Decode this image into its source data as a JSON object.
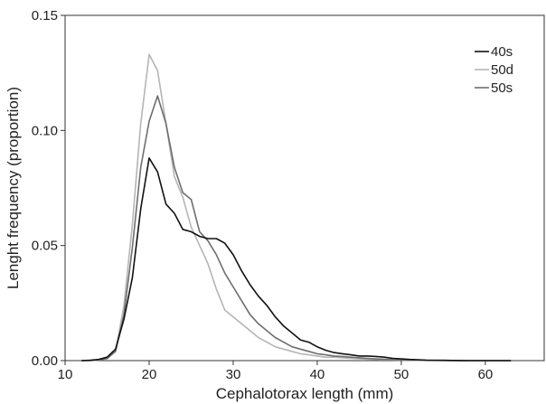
{
  "chart_data": {
    "type": "line",
    "title": "",
    "xlabel": "Cephalotorax length (mm)",
    "ylabel": "Lenght frequency (proportion)",
    "xlim": [
      10,
      67
    ],
    "ylim": [
      0,
      0.15
    ],
    "xticks": [
      "10",
      "20",
      "30",
      "40",
      "50",
      "60"
    ],
    "yticks": [
      "0.00",
      "0.05",
      "0.10",
      "0.15"
    ],
    "grid": false,
    "legend_position": "top-right",
    "series": [
      {
        "name": "40s",
        "color": "#111111",
        "x": [
          12,
          13,
          14,
          15,
          16,
          17,
          18,
          19,
          20,
          21,
          22,
          23,
          24,
          25,
          26,
          27,
          28,
          29,
          30,
          31,
          32,
          33,
          34,
          35,
          36,
          37,
          38,
          39,
          40,
          41,
          42,
          43,
          44,
          45,
          46,
          47,
          48,
          49,
          50,
          51,
          52,
          53,
          55,
          58,
          60,
          63
        ],
        "y": [
          0,
          0.0002,
          0.0005,
          0.0015,
          0.005,
          0.018,
          0.036,
          0.066,
          0.088,
          0.082,
          0.068,
          0.064,
          0.057,
          0.056,
          0.054,
          0.053,
          0.053,
          0.051,
          0.046,
          0.039,
          0.033,
          0.028,
          0.024,
          0.019,
          0.015,
          0.012,
          0.009,
          0.008,
          0.006,
          0.0045,
          0.0035,
          0.003,
          0.0025,
          0.002,
          0.002,
          0.0018,
          0.0015,
          0.001,
          0.0008,
          0.0005,
          0.0004,
          0.0002,
          0.0001,
          0,
          0,
          0
        ]
      },
      {
        "name": "50d",
        "color": "#b5b5b5",
        "x": [
          12,
          13,
          14,
          15,
          16,
          17,
          18,
          19,
          20,
          21,
          22,
          23,
          24,
          25,
          26,
          27,
          28,
          29,
          30,
          31,
          32,
          33,
          34,
          35,
          36,
          37,
          38,
          39,
          40,
          41,
          42,
          43,
          44,
          45,
          46,
          47,
          48,
          50,
          52,
          55,
          58,
          60,
          63
        ],
        "y": [
          0,
          0,
          0.0002,
          0.0008,
          0.004,
          0.024,
          0.059,
          0.103,
          0.133,
          0.126,
          0.103,
          0.08,
          0.071,
          0.058,
          0.05,
          0.042,
          0.031,
          0.022,
          0.019,
          0.016,
          0.013,
          0.01,
          0.008,
          0.006,
          0.005,
          0.004,
          0.003,
          0.0025,
          0.002,
          0.0015,
          0.0015,
          0.0012,
          0.001,
          0.0008,
          0.0006,
          0.0005,
          0.0004,
          0.0002,
          0.0001,
          0,
          0,
          0,
          0
        ]
      },
      {
        "name": "50s",
        "color": "#6e6e6e",
        "x": [
          12,
          13,
          14,
          15,
          16,
          17,
          18,
          19,
          20,
          21,
          22,
          23,
          24,
          25,
          26,
          27,
          28,
          29,
          30,
          31,
          32,
          33,
          34,
          35,
          36,
          37,
          38,
          39,
          40,
          41,
          42,
          43,
          44,
          45,
          46,
          47,
          48,
          50,
          52,
          55,
          58,
          60,
          63
        ],
        "y": [
          0,
          0,
          0.0003,
          0.001,
          0.004,
          0.02,
          0.049,
          0.084,
          0.104,
          0.115,
          0.103,
          0.084,
          0.073,
          0.07,
          0.056,
          0.052,
          0.046,
          0.038,
          0.032,
          0.026,
          0.02,
          0.016,
          0.013,
          0.01,
          0.008,
          0.006,
          0.005,
          0.004,
          0.003,
          0.0025,
          0.002,
          0.0018,
          0.0015,
          0.0012,
          0.001,
          0.0008,
          0.0006,
          0.0003,
          0.0002,
          0.0001,
          0,
          0,
          0
        ]
      }
    ]
  }
}
